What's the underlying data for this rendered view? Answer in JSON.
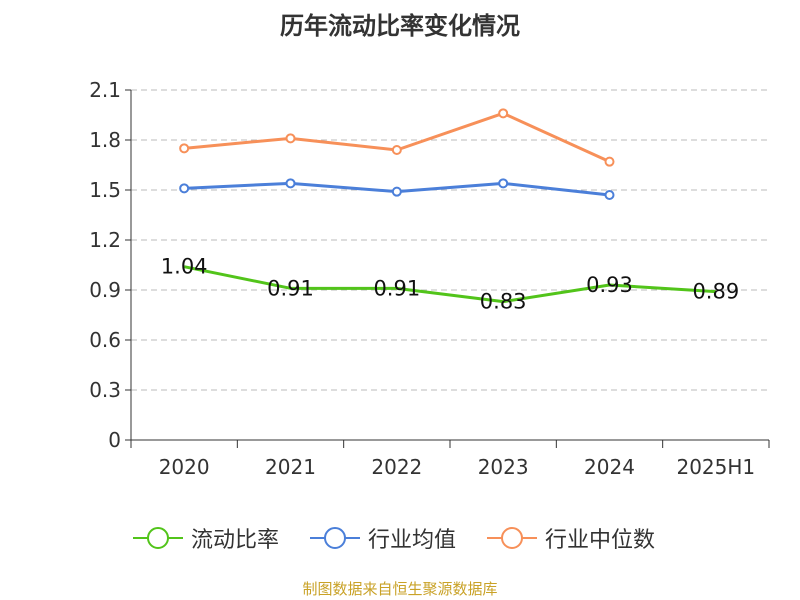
{
  "colors": {
    "current_ratio": "#52c41a",
    "industry_mean": "#4b7fd9",
    "industry_median": "#f79059",
    "source_text": "#c9a227",
    "grid": "#bbbbbb",
    "axis": "#333333"
  },
  "chart_data": {
    "type": "line",
    "title": "历年流动比率变化情况",
    "categories": [
      "2020",
      "2021",
      "2022",
      "2023",
      "2024",
      "2025H1"
    ],
    "y_ticks": [
      "0",
      "0.3",
      "0.6",
      "0.9",
      "1.2",
      "1.5",
      "1.8",
      "2.1"
    ],
    "ylim": [
      0,
      2.1
    ],
    "grid": true,
    "legend_position": "bottom",
    "series": [
      {
        "name": "流动比率",
        "values": [
          1.04,
          0.91,
          0.91,
          0.83,
          0.93,
          0.89
        ],
        "labels": [
          "1.04",
          "0.91",
          "0.91",
          "0.83",
          "0.93",
          "0.89"
        ]
      },
      {
        "name": "行业均值",
        "values": [
          1.51,
          1.54,
          1.49,
          1.54,
          1.47,
          null
        ]
      },
      {
        "name": "行业中位数",
        "values": [
          1.75,
          1.81,
          1.74,
          1.96,
          1.67,
          null
        ]
      }
    ]
  },
  "source": "制图数据来自恒生聚源数据库"
}
